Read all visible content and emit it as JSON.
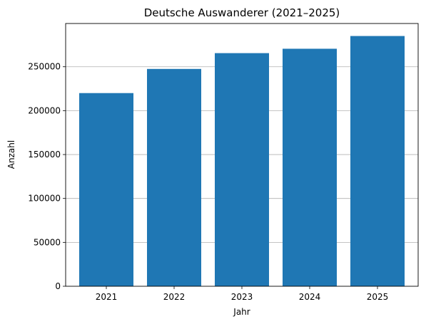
{
  "chart_data": {
    "type": "bar",
    "title": "Deutsche Auswanderer (2021–2025)",
    "xlabel": "Jahr",
    "ylabel": "Anzahl",
    "categories": [
      "2021",
      "2022",
      "2023",
      "2024",
      "2025"
    ],
    "values": [
      220000,
      247500,
      265500,
      270500,
      285000
    ],
    "ylim": [
      0,
      299250
    ],
    "yticks": [
      0,
      50000,
      100000,
      150000,
      200000,
      250000
    ],
    "ytick_labels": [
      "0",
      "50000",
      "100000",
      "150000",
      "200000",
      "250000"
    ],
    "grid": "y-major",
    "bar_color": "#1f77b4",
    "grid_color": "#b0b0b0"
  }
}
